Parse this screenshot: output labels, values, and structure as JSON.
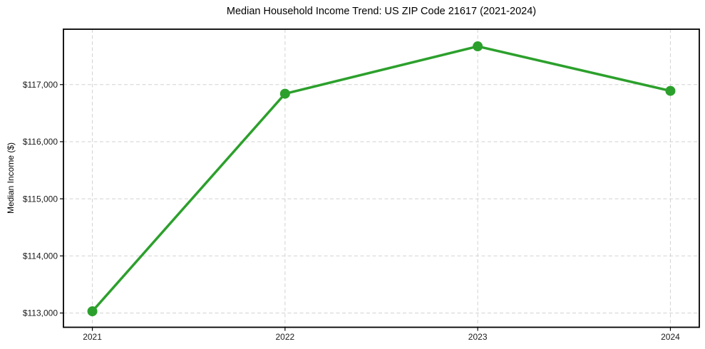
{
  "chart_data": {
    "type": "line",
    "title": "Median Household Income Trend: US ZIP Code 21617 (2021-2024)",
    "xlabel": "",
    "ylabel": "Median Income ($)",
    "x": [
      2021,
      2022,
      2023,
      2024
    ],
    "x_tick_labels": [
      "2021",
      "2022",
      "2023",
      "2024"
    ],
    "series": [
      {
        "name": "Median Household Income",
        "values": [
          113030,
          116840,
          117670,
          116890
        ]
      }
    ],
    "y_ticks": [
      113000,
      114000,
      115000,
      116000,
      117000
    ],
    "y_tick_labels": [
      "$113,000",
      "$114,000",
      "$115,000",
      "$116,000",
      "$117,000"
    ],
    "xlim": [
      2020.85,
      2024.15
    ],
    "ylim": [
      112750,
      117970
    ],
    "grid": true,
    "grid_style": "dashed",
    "legend_position": "none",
    "colors": {
      "line": "#2ca02c",
      "marker": "#2ca02c",
      "grid": "#d2d2d2",
      "spine": "#000000",
      "tick_text": "#1a1a1a",
      "background": "#ffffff"
    }
  }
}
